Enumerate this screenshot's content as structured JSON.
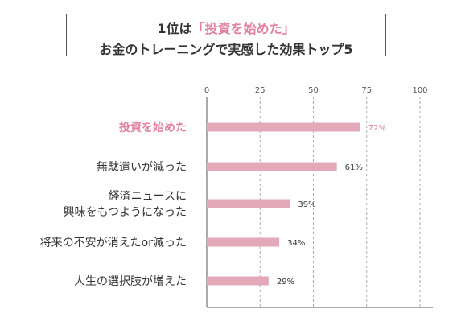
{
  "title": {
    "line1_prefix": "1位は",
    "line1_highlight": "「投資を始めた」",
    "line2": "お金のトレーニングで実感した効果トップ5"
  },
  "colors": {
    "bar": "#e3a9b9",
    "highlight_text": "#e0829e",
    "text": "#333333",
    "axis": "#555555",
    "grid": "#aaaaaa"
  },
  "chart_data": {
    "type": "bar",
    "orientation": "horizontal",
    "categories": [
      "投資を始めた",
      "無駄遣いが減った",
      "経済ニュースに\n興味をもつようになった",
      "将来の不安が消えたor減った",
      "人生の選択肢が増えた"
    ],
    "values": [
      72,
      61,
      39,
      34,
      29
    ],
    "value_labels": [
      "72%",
      "61%",
      "39%",
      "34%",
      "29%"
    ],
    "highlight_index": 0,
    "xlim": [
      0,
      100
    ],
    "xticks": [
      "0",
      "25",
      "50",
      "75",
      "100"
    ],
    "grid": true,
    "grid_style": "dashed"
  }
}
